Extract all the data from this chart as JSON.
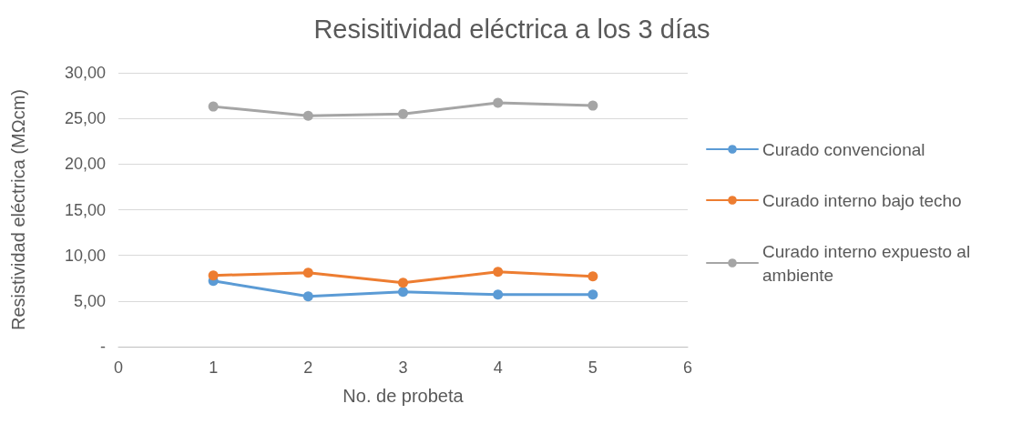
{
  "chart_data": {
    "type": "line",
    "title": "Resisitividad eléctrica a los 3 días",
    "xlabel": "No. de probeta",
    "ylabel": "Resistividad eléctrica (MΩcm)",
    "x": [
      1,
      2,
      3,
      4,
      5
    ],
    "xlim": [
      0,
      6
    ],
    "xticks": [
      0,
      1,
      2,
      3,
      4,
      5,
      6
    ],
    "ylim": [
      0,
      30
    ],
    "yticks": [
      {
        "value": 0,
        "label": "-"
      },
      {
        "value": 5,
        "label": "5,00"
      },
      {
        "value": 10,
        "label": "10,00"
      },
      {
        "value": 15,
        "label": "15,00"
      },
      {
        "value": 20,
        "label": "20,00"
      },
      {
        "value": 25,
        "label": "25,00"
      },
      {
        "value": 30,
        "label": "30,00"
      }
    ],
    "grid": "y",
    "legend": "right",
    "marker": "circle",
    "line_style": "solid",
    "series": [
      {
        "name": "Curado convencional",
        "color": "#5b9bd5",
        "values": [
          7.2,
          5.5,
          6.0,
          5.7,
          5.7
        ]
      },
      {
        "name": "Curado interno bajo techo",
        "color": "#ed7d31",
        "values": [
          7.8,
          8.1,
          7.0,
          8.2,
          7.7
        ]
      },
      {
        "name": "Curado interno expuesto al ambiente",
        "color": "#a5a5a5",
        "values": [
          26.3,
          25.3,
          25.5,
          26.7,
          26.4
        ]
      }
    ]
  }
}
